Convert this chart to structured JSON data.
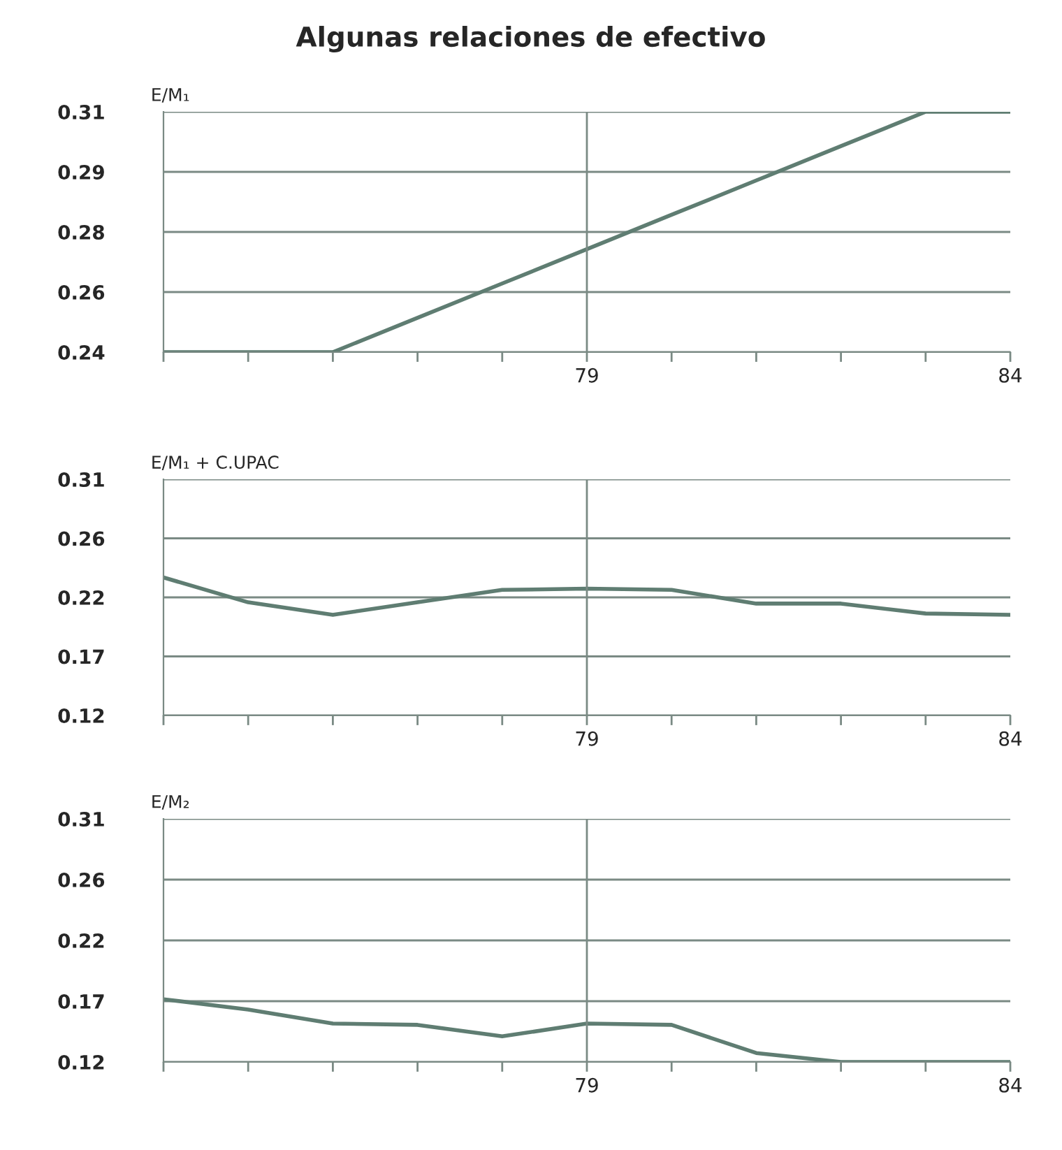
{
  "chart_data": [
    {
      "type": "line",
      "title": "Algunas relaciones de efectivo",
      "ylabel": "E/M₁",
      "x": [
        74,
        75,
        76,
        77,
        78,
        79,
        80,
        81,
        82,
        83,
        84
      ],
      "series": [
        {
          "color": "#5f7d72",
          "values": [
            0.24,
            0.24,
            0.24,
            0.25,
            0.26,
            0.27,
            0.28,
            0.29,
            0.3,
            0.31,
            0.31
          ]
        }
      ],
      "xlim": [
        74,
        84
      ],
      "xticks": [
        {
          "value": 74,
          "label": null
        },
        {
          "value": 75,
          "label": null
        },
        {
          "value": 76,
          "label": null
        },
        {
          "value": 77,
          "label": null
        },
        {
          "value": 78,
          "label": null
        },
        79,
        {
          "value": 80,
          "label": null
        },
        {
          "value": 81,
          "label": null
        },
        {
          "value": 82,
          "label": null
        },
        {
          "value": 83,
          "label": null
        },
        84
      ],
      "ylim": [
        0.24,
        0.31
      ],
      "yticks": [
        0.24,
        {
          "value": 0.2575,
          "label": "0.26"
        },
        {
          "value": 0.275,
          "label": "0.28"
        },
        {
          "value": 0.2925,
          "label": "0.29"
        },
        0.31
      ],
      "ref_lines": [
        {
          "axis": "x",
          "value": 79
        }
      ],
      "grid": "y"
    },
    {
      "type": "line",
      "ylabel": "E/M₁ + C.UPAC",
      "x": [
        74,
        75,
        76,
        77,
        78,
        79,
        80,
        81,
        82,
        83,
        84
      ],
      "series": [
        {
          "color": "#5f7d72",
          "values": [
            0.231,
            0.211,
            0.201,
            0.211,
            0.221,
            0.222,
            0.221,
            0.21,
            0.21,
            0.202,
            0.201
          ]
        }
      ],
      "xlim": [
        74,
        84
      ],
      "xticks": [
        {
          "value": 74,
          "label": null
        },
        {
          "value": 75,
          "label": null
        },
        {
          "value": 76,
          "label": null
        },
        {
          "value": 77,
          "label": null
        },
        {
          "value": 78,
          "label": null
        },
        79,
        {
          "value": 80,
          "label": null
        },
        {
          "value": 81,
          "label": null
        },
        {
          "value": 82,
          "label": null
        },
        {
          "value": 83,
          "label": null
        },
        84
      ],
      "ylim": [
        0.12,
        0.31
      ],
      "yticks": [
        0.12,
        {
          "value": 0.1675,
          "label": "0.17"
        },
        {
          "value": 0.215,
          "label": "0.22"
        },
        {
          "value": 0.2625,
          "label": "0.26"
        },
        0.31
      ],
      "ref_lines": [
        {
          "axis": "x",
          "value": 79
        }
      ],
      "grid": "y"
    },
    {
      "type": "line",
      "ylabel": "E/M₂",
      "x": [
        74,
        75,
        76,
        77,
        78,
        79,
        80,
        81,
        82,
        83,
        84
      ],
      "series": [
        {
          "color": "#5f7d72",
          "values": [
            0.169,
            0.161,
            0.15,
            0.149,
            0.14,
            0.15,
            0.149,
            0.127,
            0.12,
            0.12,
            0.12
          ]
        }
      ],
      "xlim": [
        74,
        84
      ],
      "xticks": [
        {
          "value": 74,
          "label": null
        },
        {
          "value": 75,
          "label": null
        },
        {
          "value": 76,
          "label": null
        },
        {
          "value": 77,
          "label": null
        },
        {
          "value": 78,
          "label": null
        },
        79,
        {
          "value": 80,
          "label": null
        },
        {
          "value": 81,
          "label": null
        },
        {
          "value": 82,
          "label": null
        },
        {
          "value": 83,
          "label": null
        },
        84
      ],
      "ylim": [
        0.12,
        0.31
      ],
      "yticks": [
        0.12,
        {
          "value": 0.1675,
          "label": "0.17"
        },
        {
          "value": 0.215,
          "label": "0.22"
        },
        {
          "value": 0.2625,
          "label": "0.26"
        },
        0.31
      ],
      "ref_lines": [
        {
          "axis": "x",
          "value": 79
        }
      ],
      "grid": "y"
    }
  ]
}
